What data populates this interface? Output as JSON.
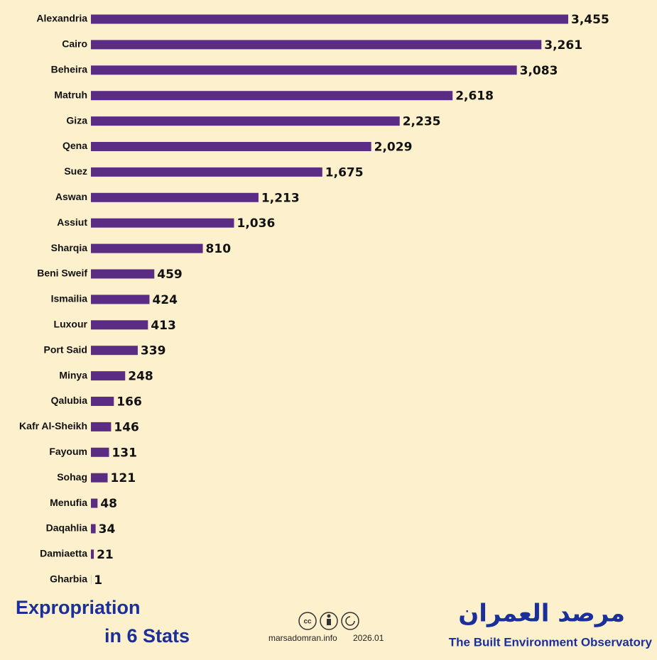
{
  "chart_data": {
    "type": "hbar",
    "title": "Expropriation",
    "subtitle": "in 6 Stats",
    "source": "marsadomran.info",
    "date": "2026.01",
    "brand_arabic": "مرصد العمران",
    "brand": "The Built Environment Observatory",
    "color": "#5b2c83",
    "categories": [
      "Alexandria",
      "Cairo",
      "Beheira",
      "Matruh",
      "Giza",
      "Qena",
      "Suez",
      "Aswan",
      "Assiut",
      "Sharqia",
      "Beni Sweif",
      "Ismailia",
      "Luxour",
      "Port Said",
      "Minya",
      "Qalubia",
      "Kafr Al-Sheikh",
      "Fayoum",
      "Sohag",
      "Menufia",
      "Daqahlia",
      "Damiaetta",
      "Gharbia"
    ],
    "values": [
      3455,
      3261,
      3083,
      2618,
      2235,
      2029,
      1675,
      1213,
      1036,
      810,
      459,
      424,
      413,
      339,
      248,
      166,
      146,
      131,
      121,
      48,
      34,
      21,
      1
    ],
    "value_labels": [
      "3,455",
      "3,261",
      "3,083",
      "2,618",
      "2,235",
      "2,029",
      "1,675",
      "1,213",
      "1,036",
      "810",
      "459",
      "424",
      "413",
      "339",
      "248",
      "166",
      "146",
      "131",
      "121",
      "48",
      "34",
      "21",
      "1"
    ]
  }
}
